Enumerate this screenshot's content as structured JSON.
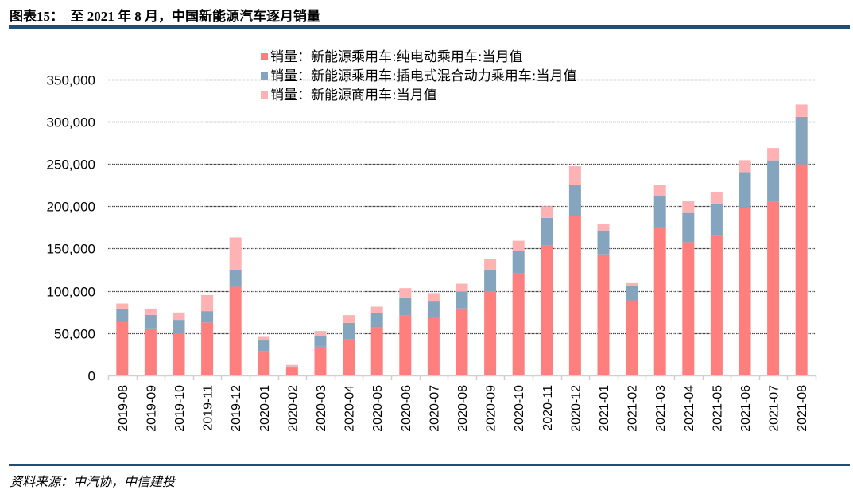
{
  "title": "图表15：  至 2021 年 8 月，中国新能源汽车逐月销量",
  "source": "资料来源：中汽协，中信建投",
  "colors": {
    "rule": "#1f4e79",
    "bev": "#ff7f7f",
    "phev": "#84a5bd",
    "commercial": "#ffb2b4"
  },
  "chart_data": {
    "type": "bar",
    "stacked": true,
    "title": "至 2021 年 8 月，中国新能源汽车逐月销量",
    "xlabel": "",
    "ylabel": "",
    "ylim": [
      0,
      350000
    ],
    "yticks": [
      0,
      50000,
      100000,
      150000,
      200000,
      250000,
      300000,
      350000
    ],
    "ytick_labels": [
      "0",
      "50,000",
      "100,000",
      "150,000",
      "200,000",
      "250,000",
      "300,000",
      "350,000"
    ],
    "grid": true,
    "legend_position": "top-center",
    "categories": [
      "2019-08",
      "2019-09",
      "2019-10",
      "2019-11",
      "2019-12",
      "2020-01",
      "2020-02",
      "2020-03",
      "2020-04",
      "2020-05",
      "2020-06",
      "2020-07",
      "2020-08",
      "2020-09",
      "2020-10",
      "2020-11",
      "2020-12",
      "2021-01",
      "2021-02",
      "2021-03",
      "2021-04",
      "2021-05",
      "2021-06",
      "2021-07",
      "2021-08"
    ],
    "series": [
      {
        "name": "销量：新能源乘用车:纯电动乘用车:当月值",
        "color": "#ff7f7f",
        "values": [
          63000,
          55600,
          49400,
          62600,
          104800,
          28400,
          8800,
          34000,
          42500,
          56900,
          71000,
          68900,
          79200,
          99200,
          120400,
          153400,
          188200,
          143100,
          88800,
          175600,
          157500,
          165300,
          197300,
          205200,
          249400
        ]
      },
      {
        "name": "销量：新能源乘用车:插电式混合动力乘用车:当月值",
        "color": "#84a5bd",
        "values": [
          16000,
          16000,
          16300,
          13400,
          20000,
          12900,
          1800,
          12200,
          19700,
          16500,
          20300,
          18400,
          20000,
          25300,
          26600,
          32700,
          36600,
          28200,
          16500,
          36000,
          34500,
          37900,
          42900,
          48800,
          56100
        ]
      },
      {
        "name": "销量：新能源商用车:当月值",
        "color": "#ffb2b4",
        "values": [
          6000,
          7400,
          8700,
          19000,
          38200,
          4300,
          1900,
          6300,
          9100,
          7900,
          11900,
          10000,
          9300,
          12800,
          12200,
          13700,
          22200,
          7200,
          3800,
          13800,
          13700,
          13500,
          14100,
          14600,
          14500
        ]
      }
    ]
  }
}
